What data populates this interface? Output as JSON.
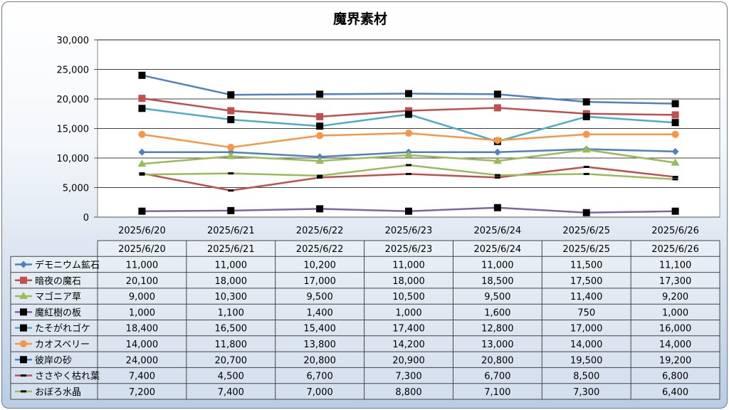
{
  "chart_data": {
    "type": "line",
    "title": "魔界素材",
    "xlabel": "",
    "ylabel": "",
    "ylim": [
      0,
      30000
    ],
    "yticks": [
      0,
      5000,
      10000,
      15000,
      20000,
      25000,
      30000
    ],
    "ytick_labels": [
      "0",
      "5,000",
      "10,000",
      "15,000",
      "20,000",
      "25,000",
      "30,000"
    ],
    "categories": [
      "2025/6/20",
      "2025/6/21",
      "2025/6/22",
      "2025/6/23",
      "2025/6/24",
      "2025/6/25",
      "2025/6/26"
    ],
    "grid": true,
    "legend": "data-table",
    "series": [
      {
        "name": "デモニウム鉱石",
        "color": "#4f81bd",
        "marker": "diamond",
        "values": [
          11000,
          11000,
          10200,
          11000,
          11000,
          11500,
          11100
        ],
        "labels": [
          "11,000",
          "11,000",
          "10,200",
          "11,000",
          "11,000",
          "11,500",
          "11,100"
        ]
      },
      {
        "name": "暗夜の魔石",
        "color": "#c0504d",
        "marker": "square",
        "values": [
          20100,
          18000,
          17000,
          18000,
          18500,
          17500,
          17300
        ],
        "labels": [
          "20,100",
          "18,000",
          "17,000",
          "18,000",
          "18,500",
          "17,500",
          "17,300"
        ]
      },
      {
        "name": "マゴニア草",
        "color": "#9bbb59",
        "marker": "triangle",
        "values": [
          9000,
          10300,
          9500,
          10500,
          9500,
          11400,
          9200
        ],
        "labels": [
          "9,000",
          "10,300",
          "9,500",
          "10,500",
          "9,500",
          "11,400",
          "9,200"
        ]
      },
      {
        "name": "魔紅樹の板",
        "color": "#8064a2",
        "marker": "square-black",
        "values": [
          1000,
          1100,
          1400,
          1000,
          1600,
          750,
          1000
        ],
        "labels": [
          "1,000",
          "1,100",
          "1,400",
          "1,000",
          "1,600",
          "750",
          "1,000"
        ]
      },
      {
        "name": "たそがれゴケ",
        "color": "#4bacc6",
        "marker": "square-black",
        "values": [
          18400,
          16500,
          15400,
          17400,
          12800,
          17000,
          16000
        ],
        "labels": [
          "18,400",
          "16,500",
          "15,400",
          "17,400",
          "12,800",
          "17,000",
          "16,000"
        ]
      },
      {
        "name": "カオスベリー",
        "color": "#f79646",
        "marker": "circle",
        "values": [
          14000,
          11800,
          13800,
          14200,
          13000,
          14000,
          14000
        ],
        "labels": [
          "14,000",
          "11,800",
          "13,800",
          "14,200",
          "13,000",
          "14,000",
          "14,000"
        ]
      },
      {
        "name": "彼岸の砂",
        "color": "#4f81bd",
        "marker": "square-black",
        "values": [
          24000,
          20700,
          20800,
          20900,
          20800,
          19500,
          19200
        ],
        "labels": [
          "24,000",
          "20,700",
          "20,800",
          "20,900",
          "20,800",
          "19,500",
          "19,200"
        ]
      },
      {
        "name": "ささやく枯れ葉",
        "color": "#c0504d",
        "marker": "dash",
        "values": [
          7400,
          4500,
          6700,
          7300,
          6700,
          8500,
          6800
        ],
        "labels": [
          "7,400",
          "4,500",
          "6,700",
          "7,300",
          "6,700",
          "8,500",
          "6,800"
        ]
      },
      {
        "name": "おぼろ水晶",
        "color": "#9bbb59",
        "marker": "dash",
        "values": [
          7200,
          7400,
          7000,
          8800,
          7100,
          7300,
          6400
        ],
        "labels": [
          "7,200",
          "7,400",
          "7,000",
          "8,800",
          "7,100",
          "7,300",
          "6,400"
        ]
      }
    ]
  }
}
